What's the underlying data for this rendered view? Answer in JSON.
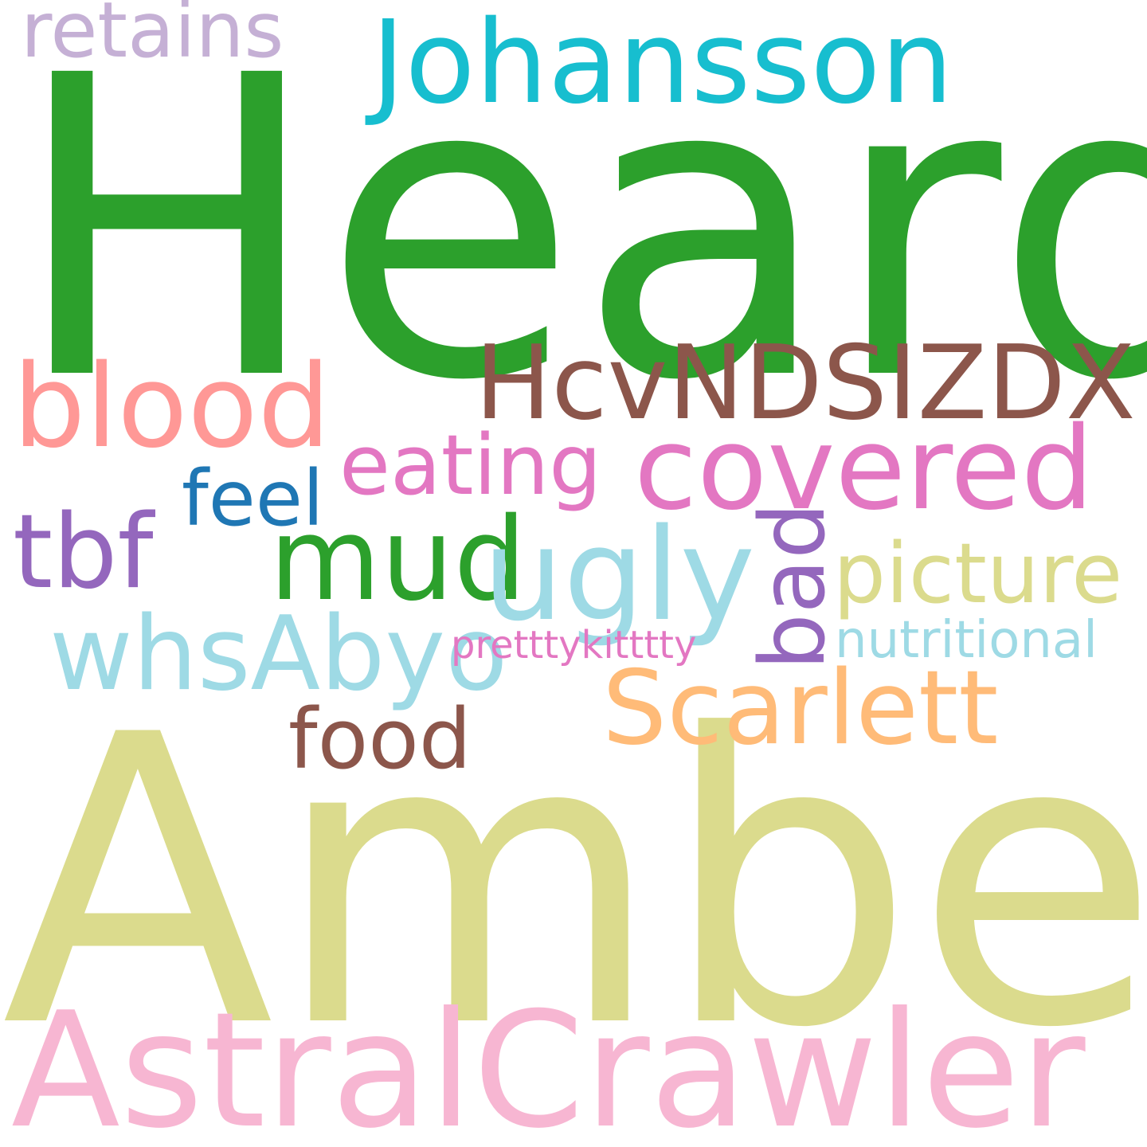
{
  "words": {
    "heard": {
      "text": "Heard",
      "color": "#2ca02c"
    },
    "amber": {
      "text": "Amber",
      "color": "#dbdb8d"
    },
    "astral": {
      "text": "AstralCrawler",
      "color": "#f7b6d2"
    },
    "johansson": {
      "text": "Johansson",
      "color": "#17becf"
    },
    "retains": {
      "text": "retains",
      "color": "#c5b0d5"
    },
    "blood": {
      "text": "blood",
      "color": "#ff9896"
    },
    "hcv": {
      "text": "HcvNDSIZDX",
      "color": "#8c564b"
    },
    "covered": {
      "text": "covered",
      "color": "#e377c2"
    },
    "eating": {
      "text": "eating",
      "color": "#e377c2"
    },
    "feel": {
      "text": "feel",
      "color": "#1f77b4"
    },
    "tbf": {
      "text": "tbf",
      "color": "#9467bd"
    },
    "mud": {
      "text": "mud",
      "color": "#2ca02c"
    },
    "ugly": {
      "text": "ugly",
      "color": "#9edae5"
    },
    "bad": {
      "text": "bad",
      "color": "#9467bd"
    },
    "picture": {
      "text": "picture",
      "color": "#dbdb8d"
    },
    "whsabyo": {
      "text": "whsAbyo",
      "color": "#9edae5"
    },
    "prett": {
      "text": "pretttykitttty",
      "color": "#e377c2"
    },
    "nutritional": {
      "text": "nutritional",
      "color": "#9edae5"
    },
    "scarlett": {
      "text": "Scarlett",
      "color": "#ffbb78"
    },
    "food": {
      "text": "food",
      "color": "#8c564b"
    }
  }
}
